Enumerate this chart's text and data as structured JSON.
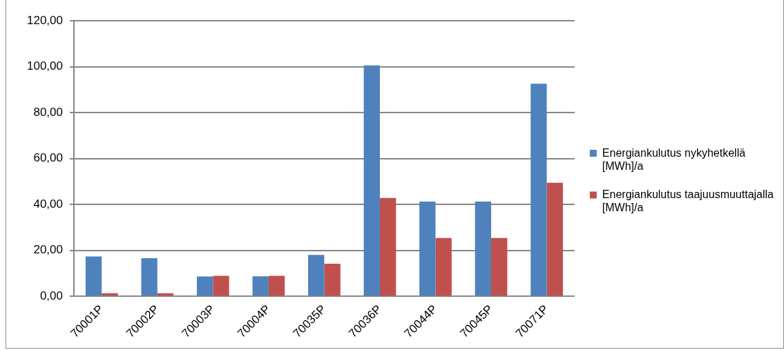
{
  "chart_data": {
    "type": "bar",
    "categories": [
      "70001P",
      "70002P",
      "70003P",
      "70004P",
      "70035P",
      "70036P",
      "70044P",
      "70045P",
      "70071P"
    ],
    "series": [
      {
        "name": "Energiankulutus nykyhetkellä [MWh]/a",
        "color": "#4f81bd",
        "values": [
          17.3,
          16.6,
          8.6,
          8.7,
          18.0,
          100.5,
          41.2,
          41.2,
          92.6
        ]
      },
      {
        "name": "Energiankulutus taajuusmuuttajalla [MWh]/a",
        "color": "#c0504d",
        "values": [
          1.3,
          1.3,
          8.9,
          8.9,
          14.2,
          42.8,
          25.4,
          25.4,
          49.4
        ]
      }
    ],
    "ylim": [
      0,
      120
    ],
    "yticks": [
      {
        "value": 0,
        "label": "0,00"
      },
      {
        "value": 20,
        "label": "20,00"
      },
      {
        "value": 40,
        "label": "40,00"
      },
      {
        "value": 60,
        "label": "60,00"
      },
      {
        "value": 80,
        "label": "80,00"
      },
      {
        "value": 100,
        "label": "100,00"
      },
      {
        "value": 120,
        "label": "120,00"
      }
    ],
    "grid": "y",
    "legend": "right"
  }
}
